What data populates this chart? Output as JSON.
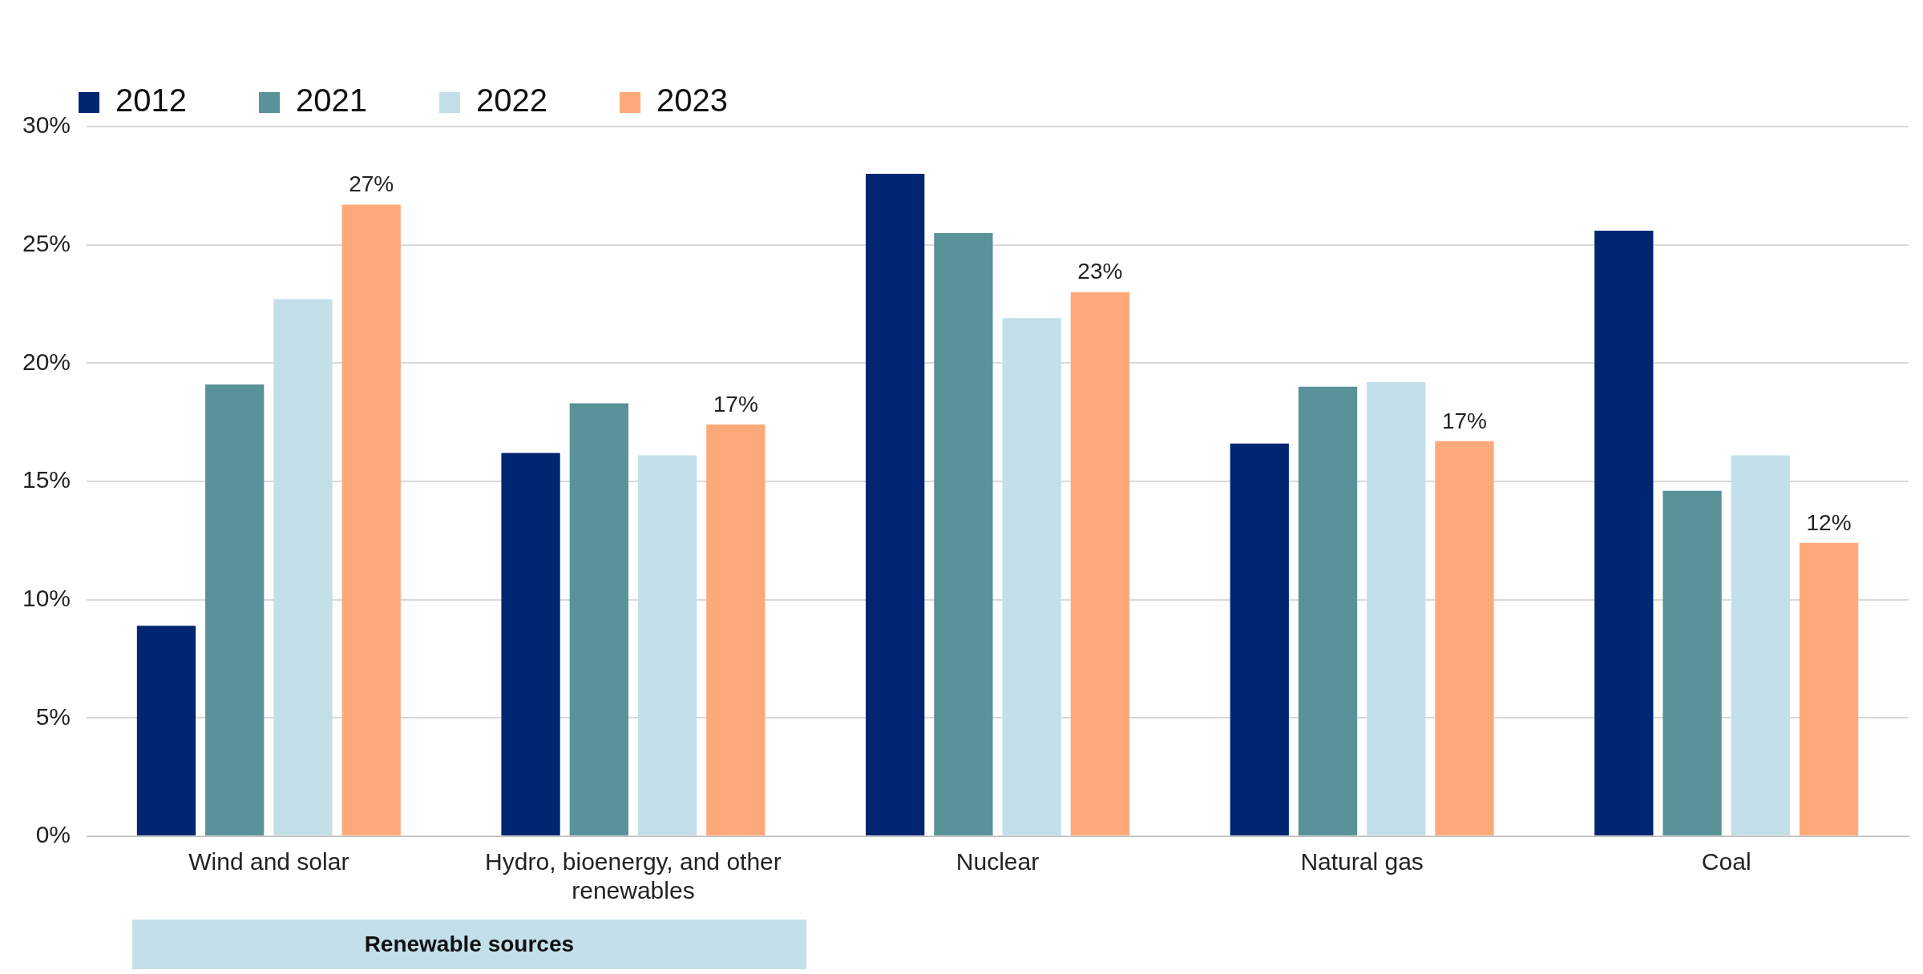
{
  "chart_data": {
    "type": "bar",
    "categories": [
      "Wind and solar",
      "Hydro, bioenergy, and other renewables",
      "Nuclear",
      "Natural gas",
      "Coal"
    ],
    "series": [
      {
        "name": "2012",
        "color": "#002672",
        "values": [
          8.9,
          16.2,
          28.0,
          16.6,
          25.6
        ]
      },
      {
        "name": "2021",
        "color": "#5a9299",
        "values": [
          19.1,
          18.3,
          25.5,
          19.0,
          14.6
        ]
      },
      {
        "name": "2022",
        "color": "#c3dfea",
        "values": [
          22.7,
          16.1,
          21.9,
          19.2,
          16.1
        ]
      },
      {
        "name": "2023",
        "color": "#fea97a",
        "values": [
          26.7,
          17.4,
          23.0,
          16.7,
          12.4
        ],
        "value_labels": [
          "27%",
          "17%",
          "23%",
          "17%",
          "12%"
        ]
      }
    ],
    "ylim": [
      0,
      30
    ],
    "yticks": [
      {
        "value": 0,
        "label": "0%"
      },
      {
        "value": 5,
        "label": "5%"
      },
      {
        "value": 10,
        "label": "10%"
      },
      {
        "value": 15,
        "label": "15%"
      },
      {
        "value": 20,
        "label": "20%"
      },
      {
        "value": 25,
        "label": "25%"
      },
      {
        "value": 30,
        "label": "30%"
      }
    ],
    "grid": "y",
    "legend": "top left",
    "annotations": [
      "Renewable sources"
    ]
  }
}
